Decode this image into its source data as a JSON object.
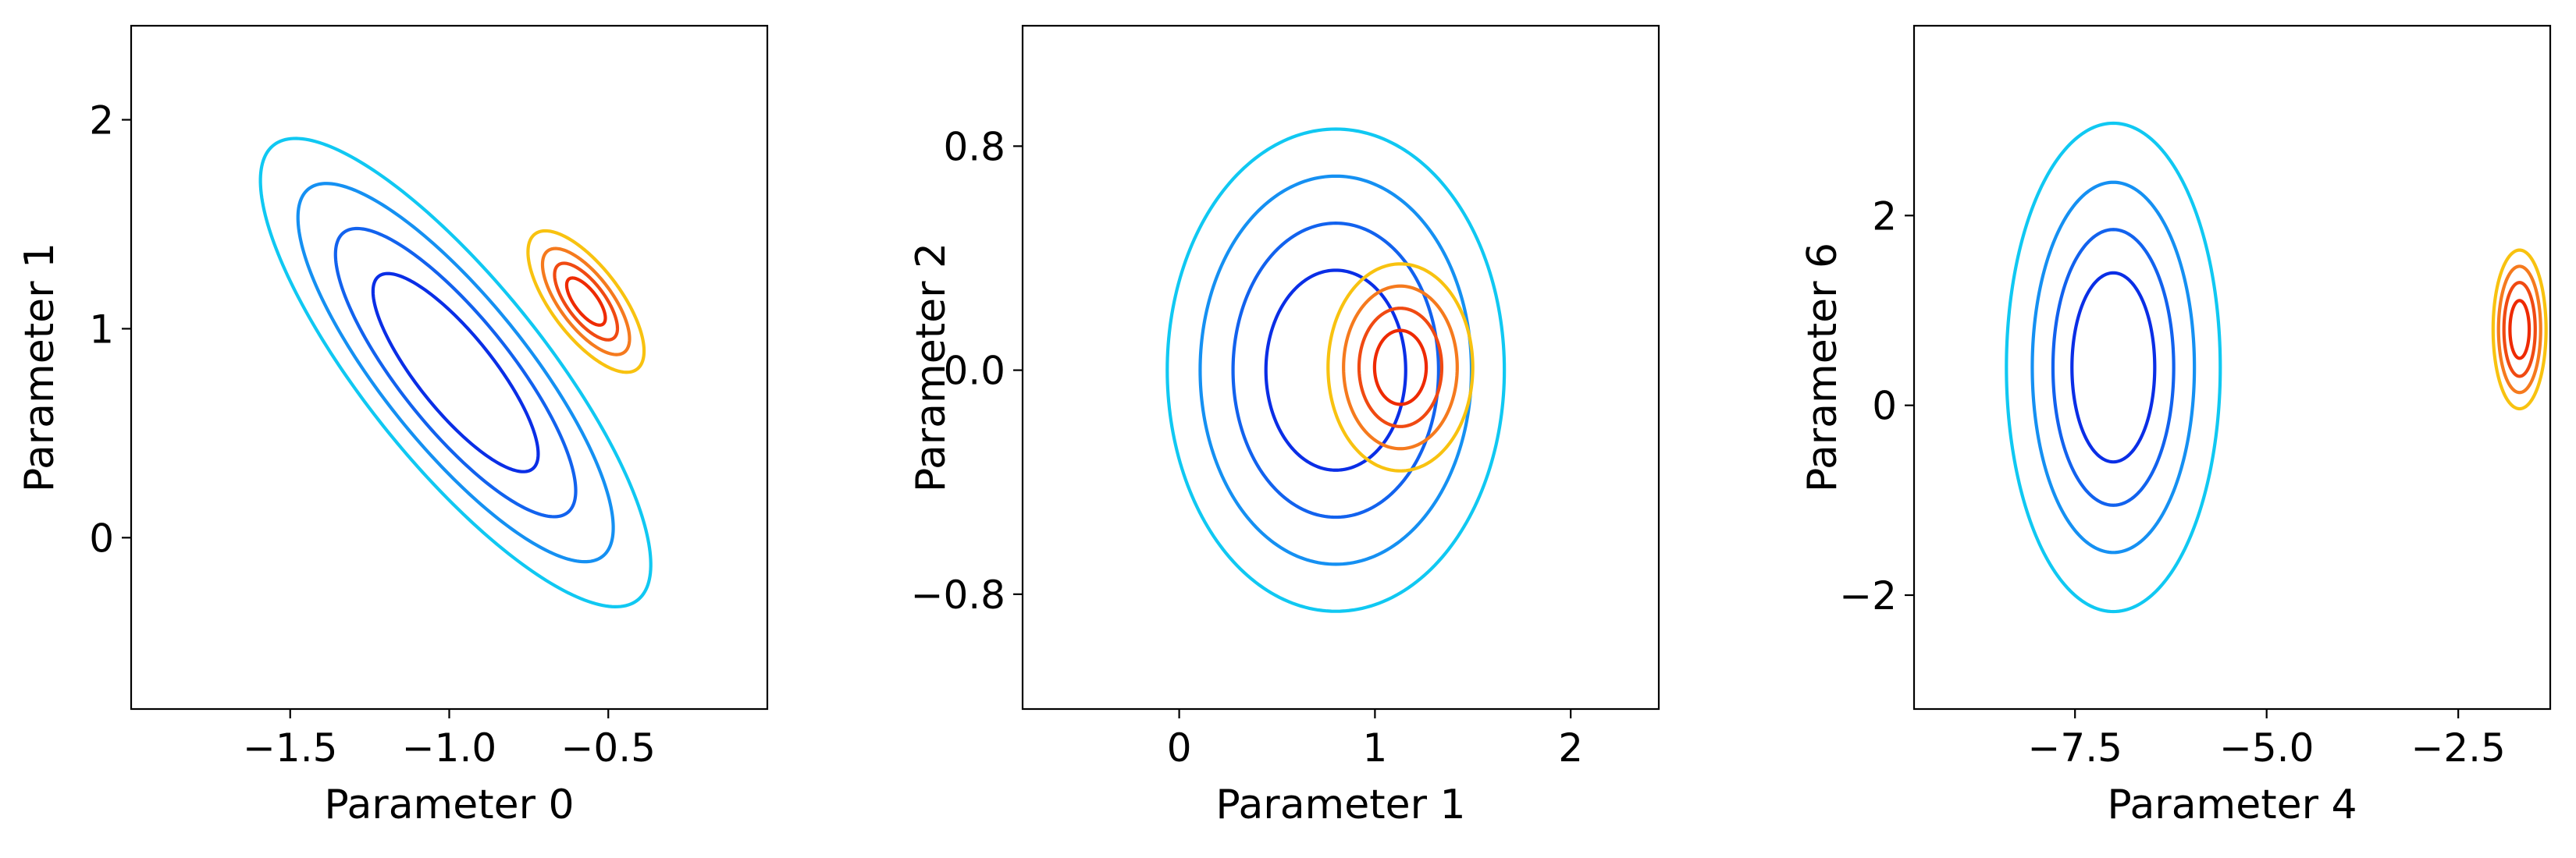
{
  "chart_data": [
    {
      "type": "contour",
      "xlabel": "Parameter 0",
      "ylabel": "Parameter 1",
      "xlim": [
        -2.0,
        0.0
      ],
      "ylim": [
        -0.82,
        2.45
      ],
      "xticks": [
        -1.5,
        -1.0,
        -0.5
      ],
      "xtick_labels": [
        "−1.5",
        "−1.0",
        "−0.5"
      ],
      "yticks": [
        0,
        1,
        2
      ],
      "ytick_labels": [
        "0",
        "1",
        "2"
      ],
      "distributions": [
        {
          "center": [
            -0.98,
            0.79
          ],
          "sx": 0.236,
          "sy": 0.431,
          "rho": -0.82,
          "levels": [
            1.1,
            1.6,
            2.1,
            2.6
          ],
          "colors": [
            "#0a2ee6",
            "#1262ee",
            "#1590f2",
            "#10c8f2"
          ]
        },
        {
          "center": [
            -0.57,
            1.13
          ],
          "sx": 0.076,
          "sy": 0.141,
          "rho": -0.7,
          "levels": [
            0.8,
            1.3,
            1.8,
            2.4
          ],
          "colors": [
            "#ee2a00",
            "#f04a12",
            "#f57a1e",
            "#f8c210"
          ]
        }
      ]
    },
    {
      "type": "contour",
      "xlabel": "Parameter 1",
      "ylabel": "Parameter 2",
      "xlim": [
        -0.8,
        2.45
      ],
      "ylim": [
        -1.21,
        1.23
      ],
      "xticks": [
        0,
        1,
        2
      ],
      "xtick_labels": [
        "0",
        "1",
        "2"
      ],
      "yticks": [
        -0.8,
        0.0,
        0.8
      ],
      "ytick_labels": [
        "−0.8",
        "0.0",
        "0.8"
      ],
      "distributions": [
        {
          "center": [
            0.8,
            0.0
          ],
          "sx": 0.21,
          "sy": 0.21,
          "rho": 0.0,
          "levels": [
            1.7,
            2.5,
            3.3,
            4.1
          ],
          "colors": [
            "#0a2ee6",
            "#1262ee",
            "#1590f2",
            "#10c8f2"
          ]
        },
        {
          "center": [
            1.13,
            0.01
          ],
          "sx": 0.132,
          "sy": 0.132,
          "rho": 0.0,
          "levels": [
            1.0,
            1.6,
            2.2,
            2.8
          ],
          "colors": [
            "#ee2a00",
            "#f04a12",
            "#f57a1e",
            "#f8c210"
          ]
        }
      ]
    },
    {
      "type": "contour",
      "xlabel": "Parameter 4",
      "ylabel": "Parameter 6",
      "xlim": [
        -9.6,
        -1.3
      ],
      "ylim": [
        -3.2,
        4.0
      ],
      "xticks": [
        -7.5,
        -5.0,
        -2.5
      ],
      "xtick_labels": [
        "−7.5",
        "−5.0",
        "−2.5"
      ],
      "yticks": [
        -2,
        0,
        2
      ],
      "ytick_labels": [
        "−2",
        "0",
        "2"
      ],
      "distributions": [
        {
          "center": [
            -7.0,
            0.4
          ],
          "sx": 0.45,
          "sy": 0.83,
          "rho": 0.0,
          "levels": [
            1.2,
            1.75,
            2.35,
            3.1
          ],
          "colors": [
            "#0a2ee6",
            "#1262ee",
            "#1590f2",
            "#10c8f2"
          ]
        },
        {
          "center": [
            -1.7,
            0.8
          ],
          "sx": 0.157,
          "sy": 0.38,
          "rho": 0.0,
          "levels": [
            0.8,
            1.3,
            1.75,
            2.2
          ],
          "colors": [
            "#ee2a00",
            "#f04a12",
            "#f57a1e",
            "#f8c210"
          ]
        }
      ]
    }
  ]
}
